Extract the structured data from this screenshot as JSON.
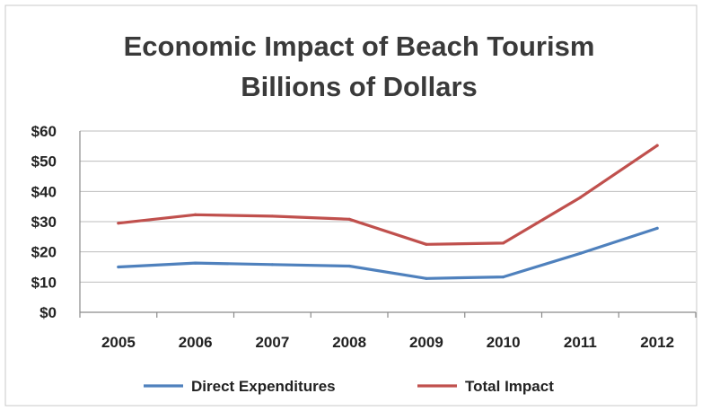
{
  "chart_data": {
    "type": "line",
    "title": "Economic Impact of Beach Tourism",
    "subtitle": "Billions of Dollars",
    "xlabel": "",
    "ylabel": "",
    "categories": [
      "2005",
      "2006",
      "2007",
      "2008",
      "2009",
      "2010",
      "2011",
      "2012"
    ],
    "ylim": [
      0,
      60
    ],
    "yticks": [
      "$0",
      "$10",
      "$20",
      "$30",
      "$40",
      "$50",
      "$60"
    ],
    "grid": true,
    "legend_position": "bottom",
    "series": [
      {
        "name": "Direct Expenditures",
        "color": "#4f81bd",
        "values": [
          15,
          16.3,
          15.8,
          15.3,
          11.2,
          11.7,
          19.5,
          27.8
        ]
      },
      {
        "name": "Total Impact",
        "color": "#c0504d",
        "values": [
          29.5,
          32.3,
          31.8,
          30.8,
          22.5,
          22.9,
          38,
          55.2
        ]
      }
    ]
  }
}
